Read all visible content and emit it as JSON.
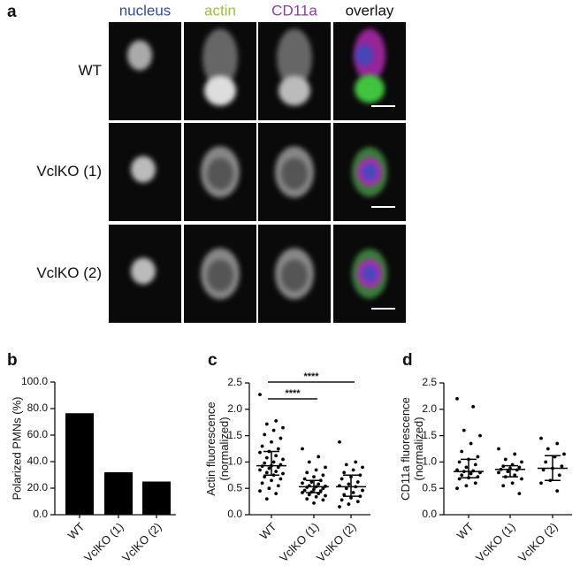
{
  "panel_a": {
    "panel": "a",
    "columns": [
      "nucleus",
      "actin",
      "CD11a",
      "overlay"
    ],
    "rows": [
      "WT",
      "VclKO (1)",
      "VclKO (2)"
    ]
  },
  "chart_data": [
    {
      "type": "bar",
      "panel": "b",
      "y_label": "Polarized PMNs (%)",
      "categories": [
        "WT",
        "VclKO (1)",
        "VclKO (2)"
      ],
      "values": [
        76.5,
        32,
        25
      ],
      "color": "#000000",
      "ylim": [
        0,
        100
      ],
      "yticks": [
        {
          "value": 0,
          "label": "0.0"
        },
        {
          "value": 20,
          "label": "20.0"
        },
        {
          "value": 40,
          "label": "40.0"
        },
        {
          "value": 60,
          "label": "60.0"
        },
        {
          "value": 80,
          "label": "80.0"
        },
        {
          "value": 100,
          "label": "100.0"
        }
      ]
    },
    {
      "type": "dotplot",
      "panel": "c",
      "y_label": "Actin fluorescence\n(normalized)",
      "categories": [
        "WT",
        "VclKO (1)",
        "VclKO (2)"
      ],
      "color": "#000000",
      "points": [
        [
          2.28,
          1.78,
          1.72,
          1.65,
          1.6,
          1.52,
          1.45,
          1.38,
          1.3,
          1.25,
          1.2,
          1.18,
          1.12,
          1.08,
          1.05,
          1.0,
          0.98,
          0.95,
          0.93,
          0.92,
          0.9,
          0.88,
          0.85,
          0.82,
          0.8,
          0.78,
          0.75,
          0.72,
          0.68,
          0.65,
          0.6,
          0.55,
          0.5,
          0.45,
          0.4,
          0.3
        ],
        [
          1.25,
          1.1,
          1.0,
          0.9,
          0.85,
          0.8,
          0.75,
          0.72,
          0.68,
          0.65,
          0.62,
          0.6,
          0.58,
          0.55,
          0.54,
          0.53,
          0.52,
          0.5,
          0.48,
          0.46,
          0.45,
          0.43,
          0.42,
          0.4,
          0.38,
          0.36,
          0.34,
          0.3,
          0.28,
          0.22
        ],
        [
          1.38,
          1.0,
          0.95,
          0.9,
          0.85,
          0.8,
          0.75,
          0.72,
          0.68,
          0.62,
          0.58,
          0.55,
          0.53,
          0.5,
          0.46,
          0.42,
          0.38,
          0.35,
          0.32,
          0.28,
          0.25,
          0.2,
          0.15
        ]
      ],
      "summary": [
        {
          "center": 0.93,
          "lower": 0.75,
          "upper": 1.2
        },
        {
          "center": 0.53,
          "lower": 0.42,
          "upper": 0.65
        },
        {
          "center": 0.53,
          "lower": 0.35,
          "upper": 0.75
        }
      ],
      "significance": [
        "****",
        "****"
      ],
      "ylim": [
        0,
        2.5
      ],
      "yticks": [
        {
          "value": 0,
          "label": "0.0"
        },
        0.5,
        {
          "value": 1,
          "label": "1.0"
        },
        1.5,
        {
          "value": 2,
          "label": "2.0"
        },
        2.5
      ]
    },
    {
      "type": "dotplot",
      "panel": "d",
      "y_label": "CD11a fluorescence\n(normalized)",
      "categories": [
        "WT",
        "VclKO (1)",
        "VclKO (2)"
      ],
      "color": "#000000",
      "points": [
        [
          2.2,
          2.05,
          1.6,
          1.5,
          1.35,
          1.2,
          1.1,
          1.05,
          1.0,
          0.95,
          0.9,
          0.85,
          0.83,
          0.82,
          0.8,
          0.78,
          0.75,
          0.72,
          0.7,
          0.68,
          0.6,
          0.55,
          0.5
        ],
        [
          1.25,
          1.15,
          1.05,
          1.0,
          0.95,
          0.92,
          0.9,
          0.88,
          0.86,
          0.85,
          0.82,
          0.8,
          0.75,
          0.72,
          0.68,
          0.6,
          0.55,
          0.4
        ],
        [
          1.45,
          1.35,
          1.25,
          1.15,
          1.1,
          1.0,
          0.92,
          0.88,
          0.85,
          0.75,
          0.65,
          0.6,
          0.45
        ]
      ],
      "summary": [
        {
          "center": 0.82,
          "lower": 0.7,
          "upper": 1.05
        },
        {
          "center": 0.86,
          "lower": 0.72,
          "upper": 0.93
        },
        {
          "center": 0.88,
          "lower": 0.65,
          "upper": 1.12
        }
      ],
      "ylim": [
        0,
        2.5
      ],
      "yticks": [
        {
          "value": 0,
          "label": "0.0"
        },
        0.5,
        {
          "value": 1,
          "label": "1.0"
        },
        1.5,
        {
          "value": 2,
          "label": "2.0"
        },
        2.5
      ]
    }
  ]
}
